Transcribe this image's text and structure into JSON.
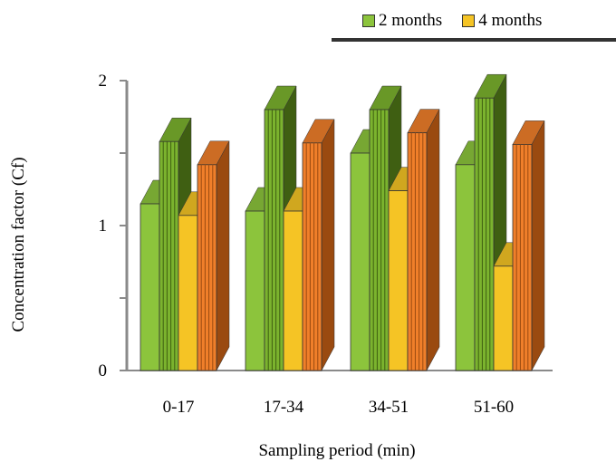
{
  "chart_data": {
    "type": "bar",
    "categories": [
      "0-17",
      "17-34",
      "34-51",
      "51-60"
    ],
    "xlabel": "Sampling period (min)",
    "ylabel": "Concentration factor (Cf)",
    "ylim": [
      0,
      2
    ],
    "yticks": [
      "0",
      "1",
      "2"
    ],
    "legend_placement": "top-right",
    "series": [
      {
        "name": "2 months",
        "color": "#8cc43c",
        "dark": "#5e8a20",
        "values": [
          1.15,
          1.1,
          1.5,
          1.42
        ]
      },
      {
        "name": "",
        "color": "#7bb32e",
        "dark": "#3f5f12",
        "values": [
          1.58,
          1.8,
          1.8,
          1.88
        ]
      },
      {
        "name": "4 months",
        "color": "#f5c425",
        "dark": "#b08a12",
        "values": [
          1.07,
          1.1,
          1.24,
          0.72
        ]
      },
      {
        "name": "",
        "color": "#f07f2a",
        "dark": "#9a4a10",
        "values": [
          1.42,
          1.57,
          1.64,
          1.56
        ]
      }
    ],
    "grid": false
  }
}
